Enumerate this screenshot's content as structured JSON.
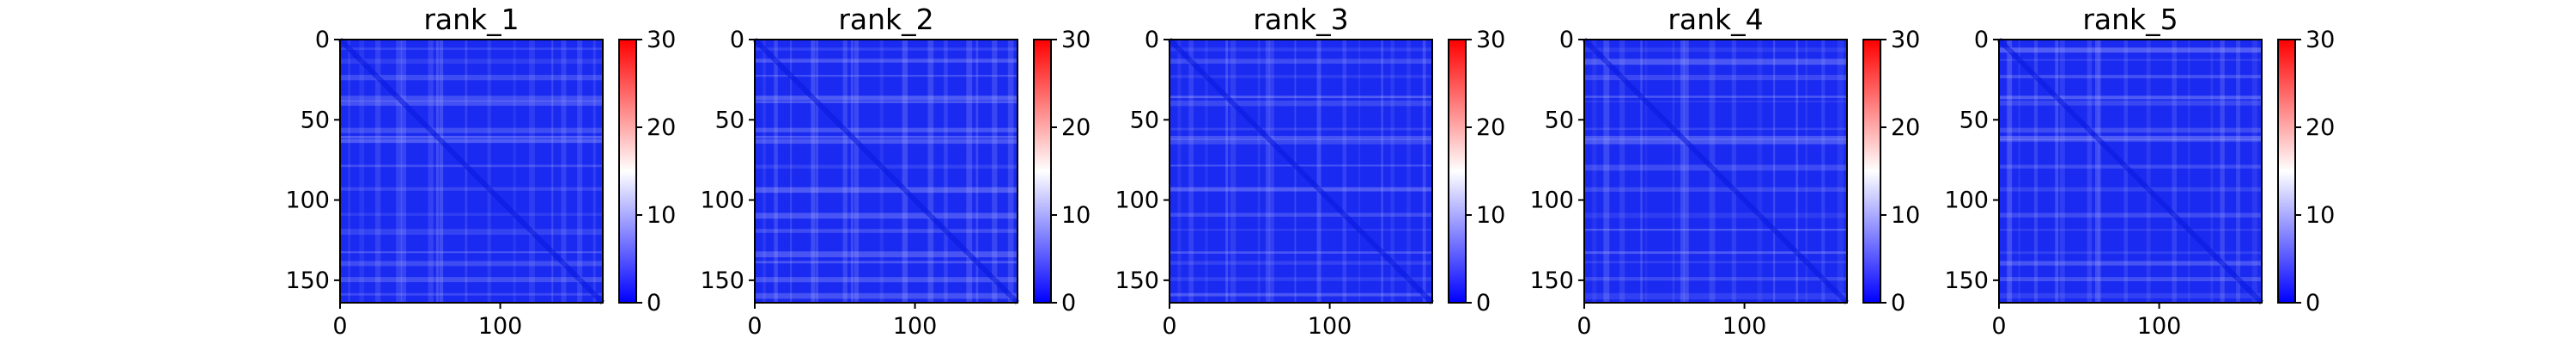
{
  "chart_data": [
    {
      "type": "heatmap",
      "title": "rank_1",
      "rows": 164,
      "cols": 164,
      "x_ticks": [
        0,
        100
      ],
      "y_ticks": [
        0,
        50,
        100,
        150
      ],
      "colorbar": {
        "ticks": [
          0,
          10,
          20,
          30
        ],
        "range": [
          0,
          30
        ],
        "colormap": "bwr"
      },
      "value_estimate": "mostly 0-8, faint bands up to ~12"
    },
    {
      "type": "heatmap",
      "title": "rank_2",
      "rows": 164,
      "cols": 164,
      "x_ticks": [
        0,
        100
      ],
      "y_ticks": [
        0,
        50,
        100,
        150
      ],
      "colorbar": {
        "ticks": [
          0,
          10,
          20,
          30
        ],
        "range": [
          0,
          30
        ],
        "colormap": "bwr"
      },
      "value_estimate": "mostly 0-8, faint bands up to ~12"
    },
    {
      "type": "heatmap",
      "title": "rank_3",
      "rows": 164,
      "cols": 164,
      "x_ticks": [
        0,
        100
      ],
      "y_ticks": [
        0,
        50,
        100,
        150
      ],
      "colorbar": {
        "ticks": [
          0,
          10,
          20,
          30
        ],
        "range": [
          0,
          30
        ],
        "colormap": "bwr"
      },
      "value_estimate": "mostly 0-8, faint bands up to ~12"
    },
    {
      "type": "heatmap",
      "title": "rank_4",
      "rows": 164,
      "cols": 164,
      "x_ticks": [
        0,
        100
      ],
      "y_ticks": [
        0,
        50,
        100,
        150
      ],
      "colorbar": {
        "ticks": [
          0,
          10,
          20,
          30
        ],
        "range": [
          0,
          30
        ],
        "colormap": "bwr"
      },
      "value_estimate": "mostly 0-8, faint bands up to ~12"
    },
    {
      "type": "heatmap",
      "title": "rank_5",
      "rows": 164,
      "cols": 164,
      "x_ticks": [
        0,
        100
      ],
      "y_ticks": [
        0,
        50,
        100,
        150
      ],
      "colorbar": {
        "ticks": [
          0,
          10,
          20,
          30
        ],
        "range": [
          0,
          30
        ],
        "colormap": "bwr"
      },
      "value_estimate": "mostly 0-8, faint bands up to ~12"
    }
  ],
  "colors": {
    "low": "#0000ff",
    "mid": "#ffffff",
    "high": "#ff0000",
    "heatmap_base": "#1a2af0",
    "band_light": "#c8ccff"
  }
}
